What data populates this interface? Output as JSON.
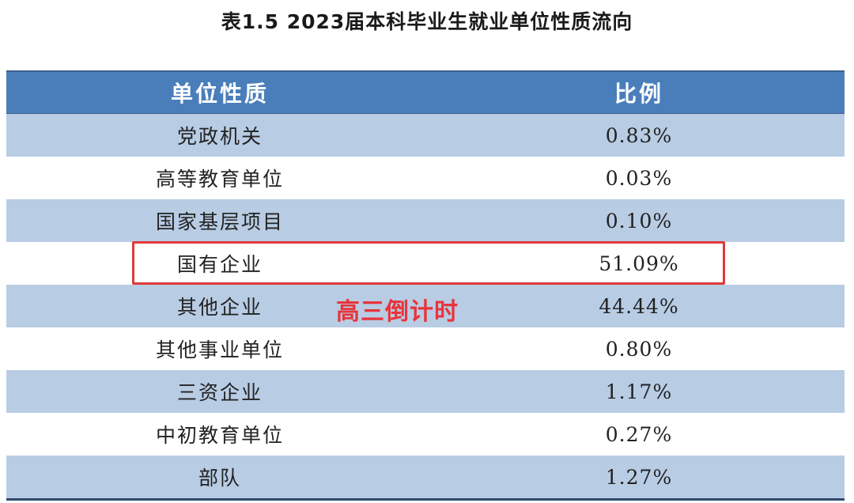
{
  "title": "表1.5 2023届本科毕业生就业单位性质流向",
  "table": {
    "headers": [
      "单位性质",
      "比例"
    ],
    "rows": [
      {
        "name": "党政机关",
        "ratio": "0.83%"
      },
      {
        "name": "高等教育单位",
        "ratio": "0.03%"
      },
      {
        "name": "国家基层项目",
        "ratio": "0.10%"
      },
      {
        "name": "国有企业",
        "ratio": "51.09%"
      },
      {
        "name": "其他企业",
        "ratio": "44.44%"
      },
      {
        "name": "其他事业单位",
        "ratio": "0.80%"
      },
      {
        "name": "三资企业",
        "ratio": "1.17%"
      },
      {
        "name": "中初教育单位",
        "ratio": "0.27%"
      },
      {
        "name": "部队",
        "ratio": "1.27%"
      }
    ]
  },
  "annotation": {
    "highlighted_row": "国有企业",
    "highlight_color": "#e03a3a",
    "watermark_text": "高三倒计时"
  },
  "colors": {
    "header_bg": "#4a7ebb",
    "shaded_row_bg": "#b8cce4",
    "plain_row_bg": "#ffffff"
  }
}
